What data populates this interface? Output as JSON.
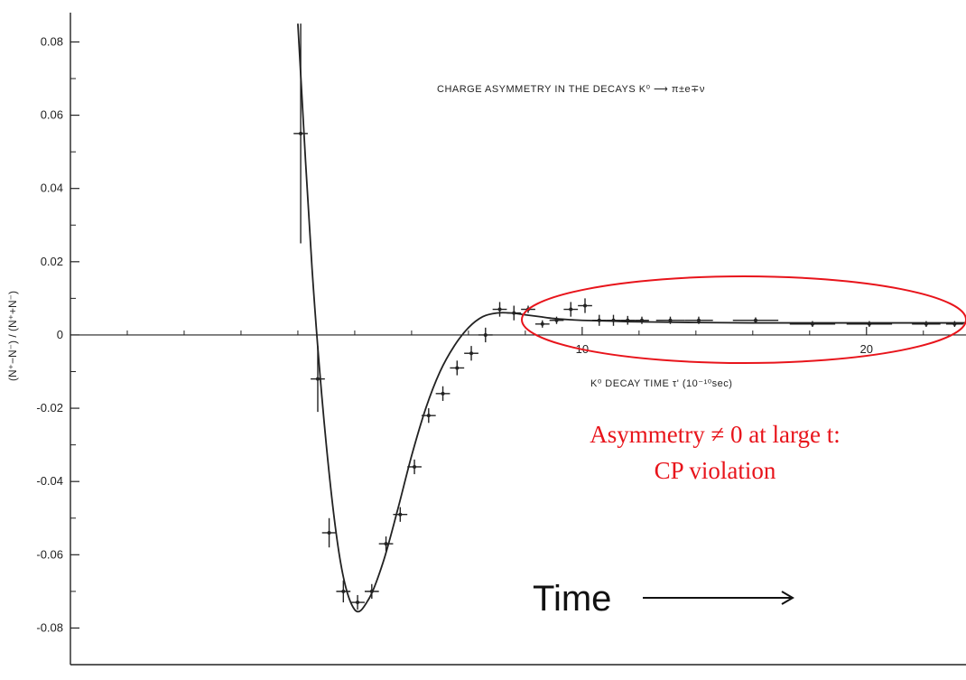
{
  "chart_data": {
    "type": "scatter",
    "title": "CHARGE ASYMMETRY IN THE DECAYS  K⁰ ⟶ π±e∓ν",
    "xlabel": "K⁰ DECAY TIME τ' (10⁻¹⁰sec)",
    "ylabel": "(N⁺−N⁻) / (N⁺+N⁻)",
    "xlim": [
      -8,
      23.5
    ],
    "ylim": [
      -0.09,
      0.088
    ],
    "x_ticks": [
      10,
      20
    ],
    "x_tick_labels": [
      "10",
      "20"
    ],
    "y_ticks": [
      0.08,
      0.06,
      0.04,
      0.02,
      0,
      -0.02,
      -0.04,
      -0.06,
      -0.08
    ],
    "y_tick_labels": [
      "0.08",
      "0.06",
      "0.04",
      "0.02",
      "0",
      "-0.02",
      "-0.04",
      "-0.06",
      "-0.08"
    ],
    "grid": false,
    "series": [
      {
        "type": "errorbar",
        "x": [
          0.1,
          0.7,
          1.1,
          1.6,
          2.1,
          2.6,
          3.1,
          3.6,
          4.1,
          4.6,
          5.1,
          5.6,
          6.1,
          6.6,
          7.1,
          7.6,
          8.1,
          8.6,
          9.1,
          9.6,
          10.1,
          10.6,
          11.1,
          11.6,
          12.1,
          13.1,
          14.1,
          16.1,
          18.1,
          20.1,
          22.1,
          23.1
        ],
        "y": [
          0.055,
          -0.012,
          -0.054,
          -0.07,
          -0.073,
          -0.07,
          -0.057,
          -0.049,
          -0.036,
          -0.022,
          -0.016,
          -0.009,
          -0.005,
          0.0,
          0.007,
          0.006,
          0.007,
          0.003,
          0.004,
          0.007,
          0.008,
          0.004,
          0.004,
          0.004,
          0.004,
          0.004,
          0.004,
          0.004,
          0.003,
          0.003,
          0.003,
          0.003
        ],
        "yerr": [
          0.03,
          0.009,
          0.004,
          0.003,
          0.002,
          0.002,
          0.002,
          0.002,
          0.002,
          0.002,
          0.002,
          0.002,
          0.002,
          0.002,
          0.002,
          0.002,
          0.001,
          0.001,
          0.001,
          0.002,
          0.002,
          0.0015,
          0.0015,
          0.0012,
          0.001,
          0.001,
          0.001,
          0.0008,
          0.0008,
          0.0008,
          0.0008,
          0.0008
        ],
        "xerr": [
          0.25,
          0.25,
          0.25,
          0.25,
          0.25,
          0.25,
          0.25,
          0.25,
          0.25,
          0.25,
          0.25,
          0.25,
          0.25,
          0.25,
          0.25,
          0.25,
          0.25,
          0.25,
          0.25,
          0.25,
          0.25,
          0.25,
          0.25,
          0.25,
          0.25,
          0.5,
          0.5,
          0.8,
          0.8,
          0.8,
          0.5,
          0.3
        ]
      },
      {
        "type": "line",
        "x": [
          0.0,
          0.5,
          1.0,
          1.5,
          2.0,
          2.5,
          3.0,
          3.5,
          4.0,
          4.5,
          5.0,
          5.5,
          6.0,
          6.5,
          7.0,
          7.5,
          8.0,
          8.5,
          9.0,
          9.5,
          10.0,
          11.0,
          12.0,
          14.0,
          16.0,
          18.0,
          20.0,
          23.5
        ],
        "y": [
          0.085,
          0.018,
          -0.03,
          -0.062,
          -0.075,
          -0.072,
          -0.062,
          -0.048,
          -0.033,
          -0.02,
          -0.01,
          -0.003,
          0.002,
          0.005,
          0.006,
          0.006,
          0.0055,
          0.005,
          0.0045,
          0.0042,
          0.004,
          0.0038,
          0.0036,
          0.0034,
          0.0033,
          0.0033,
          0.0033,
          0.0033
        ]
      }
    ],
    "annotations": [
      {
        "text_lines": [
          "Asymmetry ≠ 0 at large t:",
          "CP violation"
        ],
        "color": "#e8141b"
      },
      {
        "text": "Time",
        "arrow": "right"
      }
    ],
    "highlight_color": "#e8141b"
  }
}
